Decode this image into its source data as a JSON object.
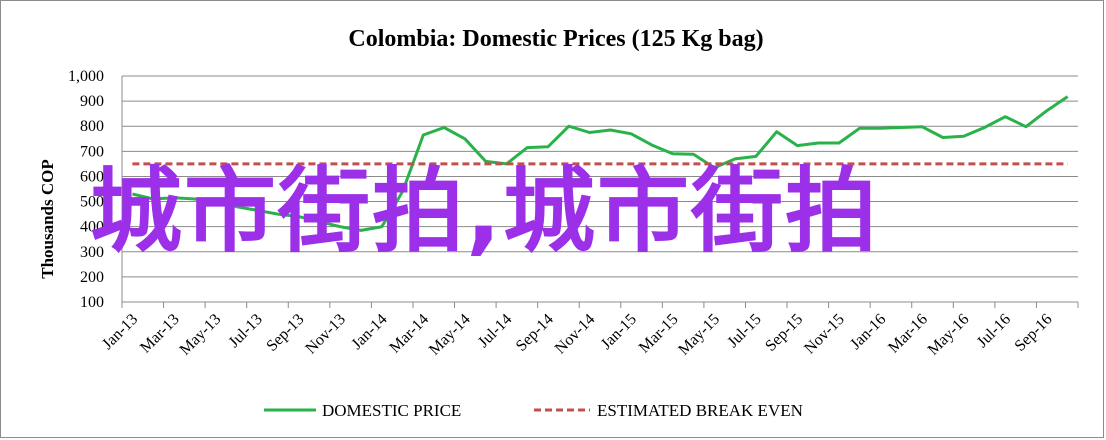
{
  "chart_data": {
    "type": "line",
    "title": "Colombia:  Domestic Prices (125 Kg bag)",
    "ylabel": "Thousands COP",
    "xlabel": "",
    "ylim": [
      100,
      1000
    ],
    "yticks": [
      100,
      200,
      300,
      400,
      500,
      600,
      700,
      800,
      900,
      1000
    ],
    "ytick_labels": [
      "100",
      "200",
      "300",
      "400",
      "500",
      "600",
      "700",
      "800",
      "900",
      "1,000"
    ],
    "grid": "horizontal",
    "legend_position": "bottom",
    "x_tick_labels": [
      "Jan-13",
      "Mar-13",
      "May-13",
      "Jul-13",
      "Sep-13",
      "Nov-13",
      "Jan-14",
      "Mar-14",
      "May-14",
      "Jul-14",
      "Sep-14",
      "Nov-14",
      "Jan-15",
      "Mar-15",
      "May-15",
      "Jul-15",
      "Sep-15",
      "Nov-15",
      "Jan-16",
      "Mar-16",
      "May-16",
      "Jul-16",
      "Sep-16"
    ],
    "x": [
      "Jan-13",
      "Feb-13",
      "Mar-13",
      "Apr-13",
      "May-13",
      "Jun-13",
      "Jul-13",
      "Aug-13",
      "Sep-13",
      "Oct-13",
      "Nov-13",
      "Dec-13",
      "Jan-14",
      "Feb-14",
      "Mar-14",
      "Apr-14",
      "May-14",
      "Jun-14",
      "Jul-14",
      "Aug-14",
      "Sep-14",
      "Oct-14",
      "Nov-14",
      "Dec-14",
      "Jan-15",
      "Feb-15",
      "Mar-15",
      "Apr-15",
      "May-15",
      "Jun-15",
      "Jul-15",
      "Aug-15",
      "Sep-15",
      "Oct-15",
      "Nov-15",
      "Dec-15",
      "Jan-16",
      "Feb-16",
      "Mar-16",
      "Apr-16",
      "May-16",
      "Jun-16",
      "Jul-16",
      "Aug-16",
      "Sep-16",
      "Oct-16"
    ],
    "series": [
      {
        "name": "DOMESTIC PRICE",
        "color": "#2ab24a",
        "style": "solid",
        "values": [
          530,
          510,
          515,
          510,
          500,
          480,
          465,
          450,
          440,
          420,
          400,
          385,
          400,
          540,
          765,
          795,
          750,
          660,
          650,
          715,
          718,
          800,
          775,
          785,
          770,
          725,
          690,
          688,
          635,
          670,
          680,
          778,
          723,
          733,
          733,
          792,
          792,
          795,
          798,
          755,
          760,
          795,
          838,
          798,
          862,
          918
        ]
      },
      {
        "name": "ESTIMATED BREAK EVEN",
        "color": "#c0504d",
        "style": "dashed",
        "values": [
          650,
          650,
          650,
          650,
          650,
          650,
          650,
          650,
          650,
          650,
          650,
          650,
          650,
          650,
          650,
          650,
          650,
          650,
          650,
          650,
          650,
          650,
          650,
          650,
          650,
          650,
          650,
          650,
          650,
          650,
          650,
          650,
          650,
          650,
          650,
          650,
          650,
          650,
          650,
          650,
          650,
          650,
          650,
          650,
          650,
          650
        ]
      }
    ]
  },
  "watermark": "城市街拍,城市街拍"
}
